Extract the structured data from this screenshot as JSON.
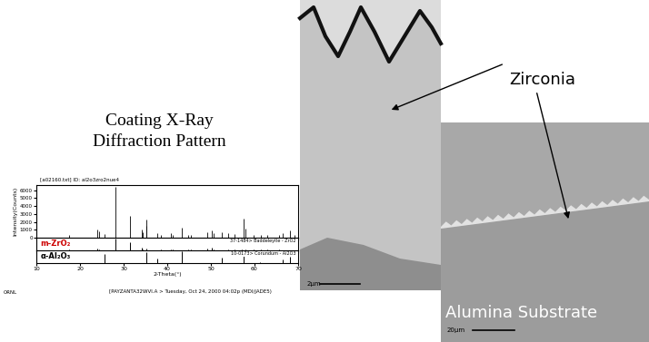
{
  "title": "Coating X-Ray\nDiffraction Pattern",
  "chart_data": {
    "type": "xrd",
    "header": "[a02160.txt] ID: al2o3zro2nue4",
    "x_label": "2-Theta(°)",
    "y_label": "Intensity(Counts)",
    "xlim": [
      10,
      70
    ],
    "xticks": [
      10,
      20,
      30,
      40,
      50,
      60,
      70
    ],
    "ylim": [
      0,
      6700
    ],
    "yticks": [
      0,
      1000,
      2000,
      3000,
      4000,
      5000,
      6000
    ],
    "color": "#000000",
    "x": [
      17.45,
      24.05,
      24.45,
      25.58,
      28.18,
      31.47,
      34.16,
      34.38,
      35.15,
      35.31,
      37.78,
      38.54,
      40.73,
      41.18,
      43.36,
      44.83,
      45.5,
      49.26,
      50.12,
      50.56,
      52.55,
      54.06,
      55.41,
      57.5,
      57.9,
      59.8,
      61.4,
      62.85,
      65.6,
      66.5,
      68.2,
      69.1
    ],
    "values": [
      400,
      1000,
      800,
      500,
      6400,
      2700,
      1050,
      700,
      1500,
      2300,
      600,
      300,
      550,
      300,
      1300,
      300,
      350,
      700,
      950,
      600,
      700,
      600,
      500,
      2400,
      1200,
      400,
      400,
      350,
      300,
      600,
      900,
      300
    ],
    "references": [
      {
        "name": "m-ZrO₂",
        "color": "#cc0000",
        "card": "37-1484> Baddeleyite - ZrO2",
        "x": [
          17.45,
          24.05,
          24.45,
          28.18,
          31.47,
          34.16,
          34.38,
          35.31,
          38.54,
          40.73,
          41.18,
          44.83,
          45.5,
          49.26,
          50.12,
          50.56,
          54.06,
          55.41,
          57.18,
          57.9,
          59.8,
          61.4,
          62.85,
          65.6,
          69.1
        ],
        "values": [
          8,
          14,
          10,
          100,
          68,
          21,
          11,
          13,
          4,
          9,
          6,
          5,
          5,
          14,
          22,
          11,
          8,
          10,
          7,
          7,
          6,
          6,
          6,
          4,
          3
        ]
      },
      {
        "name": "α-Al₂O₃",
        "color": "#000000",
        "card": "10-0173> Corundum - Al2O3",
        "x": [
          25.58,
          35.15,
          37.78,
          43.36,
          52.55,
          57.5,
          61.3,
          66.5,
          68.2
        ],
        "values": [
          75,
          90,
          40,
          100,
          45,
          80,
          8,
          30,
          50
        ]
      }
    ]
  },
  "annotations": {
    "coating": "Zirconia",
    "substrate": "Alumina Substrate"
  },
  "micrographs": [
    {
      "scale_bar": "2µm"
    },
    {
      "scale_bar": "20µm"
    }
  ],
  "footer": {
    "left": "ORNL",
    "right": "[PAYZANTA32WVI.A > Tuesday, Oct 24, 2000 04:02p (MDI/JADE5)"
  }
}
